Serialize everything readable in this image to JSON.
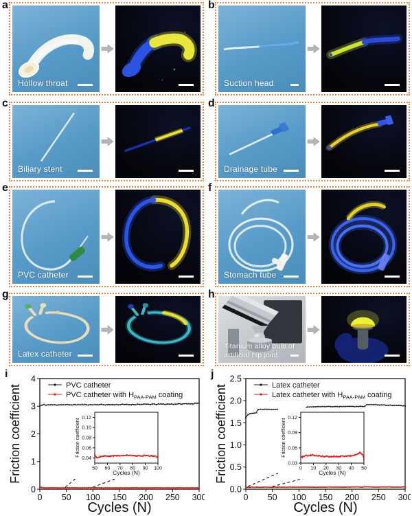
{
  "figure": {
    "panels": [
      {
        "letter": "a",
        "label": "Hollow throat"
      },
      {
        "letter": "b",
        "label": "Suction head"
      },
      {
        "letter": "c",
        "label": "Biliary stent"
      },
      {
        "letter": "d",
        "label": "Drainage tube"
      },
      {
        "letter": "e",
        "label": "PVC catheter"
      },
      {
        "letter": "f",
        "label": "Stomach tube"
      },
      {
        "letter": "g",
        "label": "Latex catheter"
      },
      {
        "letter": "h",
        "label": "Titanium alloy bulb of artificial hip joint"
      }
    ],
    "colors": {
      "panel_border": "#e87f3a",
      "daylight_bg": "#5f9fca",
      "uv_bg": "#06070e",
      "fluorescent_yellow": "#ece73a",
      "fluorescent_blue": "#2b53e0",
      "fluorescent_teal": "#38b9c8",
      "series_black": "#1a1a1a",
      "series_red": "#e81416"
    }
  },
  "chart_data": [
    {
      "panel_letter": "i",
      "type": "line",
      "xlabel": "Cycles (N)",
      "ylabel": "Friction coefficient",
      "xlim": [
        0,
        300
      ],
      "xtick_vals": [
        0,
        50,
        100,
        150,
        200,
        250,
        300
      ],
      "xtick_labels": [
        "0",
        "50",
        "100",
        "150",
        "200",
        "250",
        "300"
      ],
      "ylim": [
        0,
        4
      ],
      "ytick_vals": [
        0,
        1,
        2,
        3,
        4
      ],
      "ytick_labels": [
        "0",
        "1",
        "2",
        "3",
        "4"
      ],
      "grid": false,
      "legend_position": "top-left",
      "legend": [
        {
          "prefix": "PVC catheter",
          "sub": "",
          "suffix": "",
          "color": "#1a1a1a"
        },
        {
          "prefix": "PVC catheter with H",
          "sub": "PAA-PAM",
          "suffix": " coating",
          "color": "#e81416"
        }
      ],
      "series": [
        {
          "name": "PVC catheter",
          "color": "#1a1a1a",
          "noise": 0.016,
          "keypoints": [
            [
              0,
              3.01
            ],
            [
              6,
              3.05
            ],
            [
              150,
              3.06
            ],
            [
              260,
              3.08
            ],
            [
              300,
              3.1
            ]
          ]
        },
        {
          "name": "PVC catheter with HPAA-PAM coating",
          "color": "#e81416",
          "noise": 0.005,
          "lw": 1.4,
          "keypoints": [
            [
              0,
              0.1
            ],
            [
              3,
              0.06
            ],
            [
              8,
              0.05
            ],
            [
              300,
              0.048
            ]
          ]
        }
      ],
      "inset": {
        "xlabel": "Cycles (N)",
        "ylabel": "Friction coefficient",
        "xlim": [
          50,
          100
        ],
        "xtick_vals": [
          50,
          60,
          70,
          80,
          90,
          100
        ],
        "xtick_labels": [
          "50",
          "60",
          "70",
          "80",
          "90",
          "100"
        ],
        "ylim": [
          0.03,
          0.13
        ],
        "ytick_vals": [
          0.04,
          0.06,
          0.08,
          0.1,
          0.12
        ],
        "ytick_labels": [
          "0.04",
          "0.06",
          "0.08",
          "0.10",
          "0.12"
        ],
        "zoom_from_x": [
          48,
          100
        ],
        "series": [
          {
            "name": "PVC catheter with HPAA-PAM coating (zoom)",
            "color": "#e81416",
            "noise": 0.0013,
            "samples": 110,
            "keypoints": [
              [
                50,
                0.046
              ],
              [
                52,
                0.04
              ],
              [
                55,
                0.044
              ],
              [
                62,
                0.043
              ],
              [
                70,
                0.045
              ],
              [
                75,
                0.046
              ],
              [
                80,
                0.044
              ],
              [
                90,
                0.045
              ],
              [
                100,
                0.042
              ]
            ]
          }
        ]
      }
    },
    {
      "panel_letter": "j",
      "type": "line",
      "xlabel": "Cycles (N)",
      "ylabel": "Friction coefficient",
      "xlim": [
        0,
        300
      ],
      "xtick_vals": [
        0,
        50,
        100,
        150,
        200,
        250,
        300
      ],
      "xtick_labels": [
        "0",
        "50",
        "100",
        "150",
        "200",
        "250",
        "300"
      ],
      "ylim": [
        0,
        2.5
      ],
      "ytick_vals": [
        0,
        0.5,
        1,
        1.5,
        2,
        2.5
      ],
      "ytick_labels": [
        "0.0",
        "0.5",
        "1.0",
        "1.5",
        "2.0",
        "2.5"
      ],
      "grid": false,
      "legend_position": "top-left",
      "legend": [
        {
          "prefix": "Latex catheter",
          "sub": "",
          "suffix": "",
          "color": "#1a1a1a"
        },
        {
          "prefix": "Latex catheter with H",
          "sub": "PAA-PAM",
          "suffix": " coating",
          "color": "#e81416"
        }
      ],
      "series": [
        {
          "name": "Latex catheter",
          "color": "#1a1a1a",
          "noise": 0.006,
          "keypoints": [
            [
              0,
              1.62
            ],
            [
              3,
              1.68
            ],
            [
              8,
              1.71
            ],
            [
              20,
              1.73
            ],
            [
              22,
              1.8
            ],
            [
              60,
              1.81
            ],
            [
              113,
              1.815
            ],
            [
              115,
              1.86
            ],
            [
              150,
              1.868
            ],
            [
              225,
              1.87
            ],
            [
              227,
              1.915
            ],
            [
              255,
              1.905
            ],
            [
              300,
              1.885
            ]
          ]
        },
        {
          "name": "Latex catheter with HPAA-PAM coating",
          "color": "#e81416",
          "noise": 0.005,
          "lw": 1.4,
          "keypoints": [
            [
              0,
              0.045
            ],
            [
              300,
              0.05
            ]
          ]
        }
      ],
      "inset": {
        "xlabel": "Cycles (N)",
        "ylabel": "Friction coefficient",
        "xlim": [
          0,
          50
        ],
        "xtick_vals": [
          0,
          10,
          20,
          30,
          40,
          50
        ],
        "xtick_labels": [
          "0",
          "10",
          "20",
          "30",
          "40",
          "50"
        ],
        "ylim": [
          0.03,
          0.13
        ],
        "ytick_vals": [
          0.03,
          0.06,
          0.09,
          0.12
        ],
        "ytick_labels": [
          "0.03",
          "0.06",
          "0.09",
          "0.12"
        ],
        "zoom_from_x": [
          4,
          50
        ],
        "series": [
          {
            "name": "Latex catheter with HPAA-PAM coating (zoom)",
            "color": "#e81416",
            "noise": 0.0015,
            "samples": 110,
            "keypoints": [
              [
                0,
                0.041
              ],
              [
                4,
                0.044
              ],
              [
                8,
                0.046
              ],
              [
                14,
                0.044
              ],
              [
                20,
                0.043
              ],
              [
                30,
                0.043
              ],
              [
                38,
                0.044
              ],
              [
                44,
                0.046
              ],
              [
                47,
                0.051
              ],
              [
                49,
                0.046
              ],
              [
                50,
                0.037
              ]
            ]
          }
        ]
      }
    }
  ]
}
